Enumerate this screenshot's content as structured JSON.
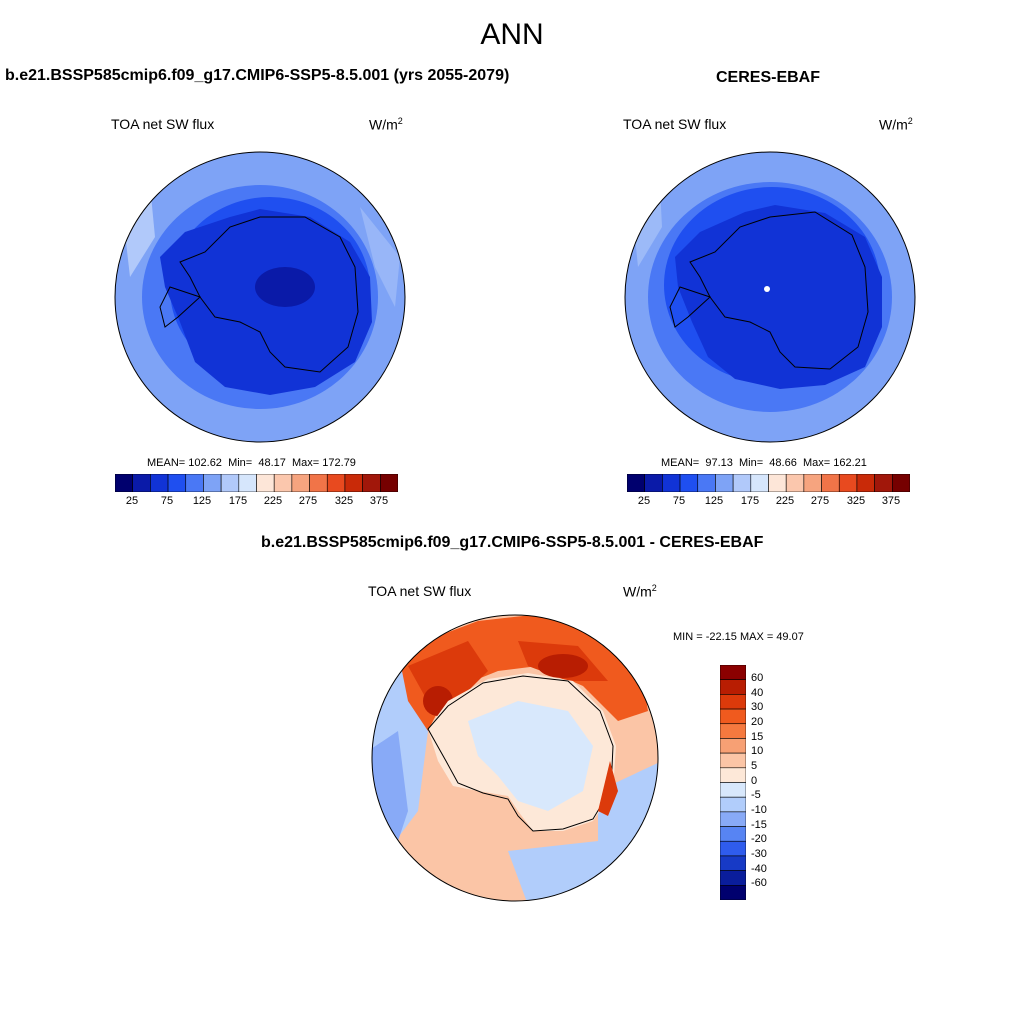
{
  "page_title": "ANN",
  "panels": [
    {
      "title": "b.e21.BSSP585cmip6.f09_g17.CMIP6-SSP5-8.5.001 (yrs 2055-2079)",
      "variable": "TOA net SW flux",
      "units": "W/m",
      "units_sup": "2",
      "stats": {
        "mean": "102.62",
        "min": "48.17",
        "max": "172.79"
      }
    },
    {
      "title": "CERES-EBAF",
      "variable": "TOA net SW flux",
      "units": "W/m",
      "units_sup": "2",
      "stats": {
        "mean": "97.13",
        "min": "48.66",
        "max": "162.21"
      }
    },
    {
      "title": "b.e21.BSSP585cmip6.f09_g17.CMIP6-SSP5-8.5.001 - CERES-EBAF",
      "variable": "TOA net SW flux",
      "units": "W/m",
      "units_sup": "2",
      "stats_text": "MIN = -22.15 MAX =  49.07"
    }
  ],
  "stat_labels": {
    "mean": "MEAN=",
    "min": "Min=",
    "max": "Max="
  },
  "abs_colorbar": {
    "ticks": [
      "25",
      "75",
      "125",
      "175",
      "225",
      "275",
      "325",
      "375"
    ],
    "colors": [
      "#00006e",
      "#0a1aa8",
      "#1133d6",
      "#1f4ff0",
      "#4a78f5",
      "#7ea3f6",
      "#b1c9fa",
      "#d6e6fc",
      "#fde6d8",
      "#fbc7ad",
      "#f6a47f",
      "#f17448",
      "#e84a1f",
      "#c92a08",
      "#a1170a",
      "#760000"
    ]
  },
  "diff_colorbar": {
    "ticks": [
      "60",
      "40",
      "30",
      "20",
      "15",
      "10",
      "5",
      "0",
      "-5",
      "-10",
      "-15",
      "-20",
      "-30",
      "-40",
      "-60"
    ],
    "colors": [
      "#8b0000",
      "#b81d02",
      "#dc3a0b",
      "#f05a1e",
      "#f5793f",
      "#f7a074",
      "#fbc5a6",
      "#fde8d8",
      "#d8e8fc",
      "#b1cdfb",
      "#88aaf7",
      "#5784f3",
      "#2f5ced",
      "#173ac6",
      "#0a1d9b",
      "#00006e"
    ]
  }
}
